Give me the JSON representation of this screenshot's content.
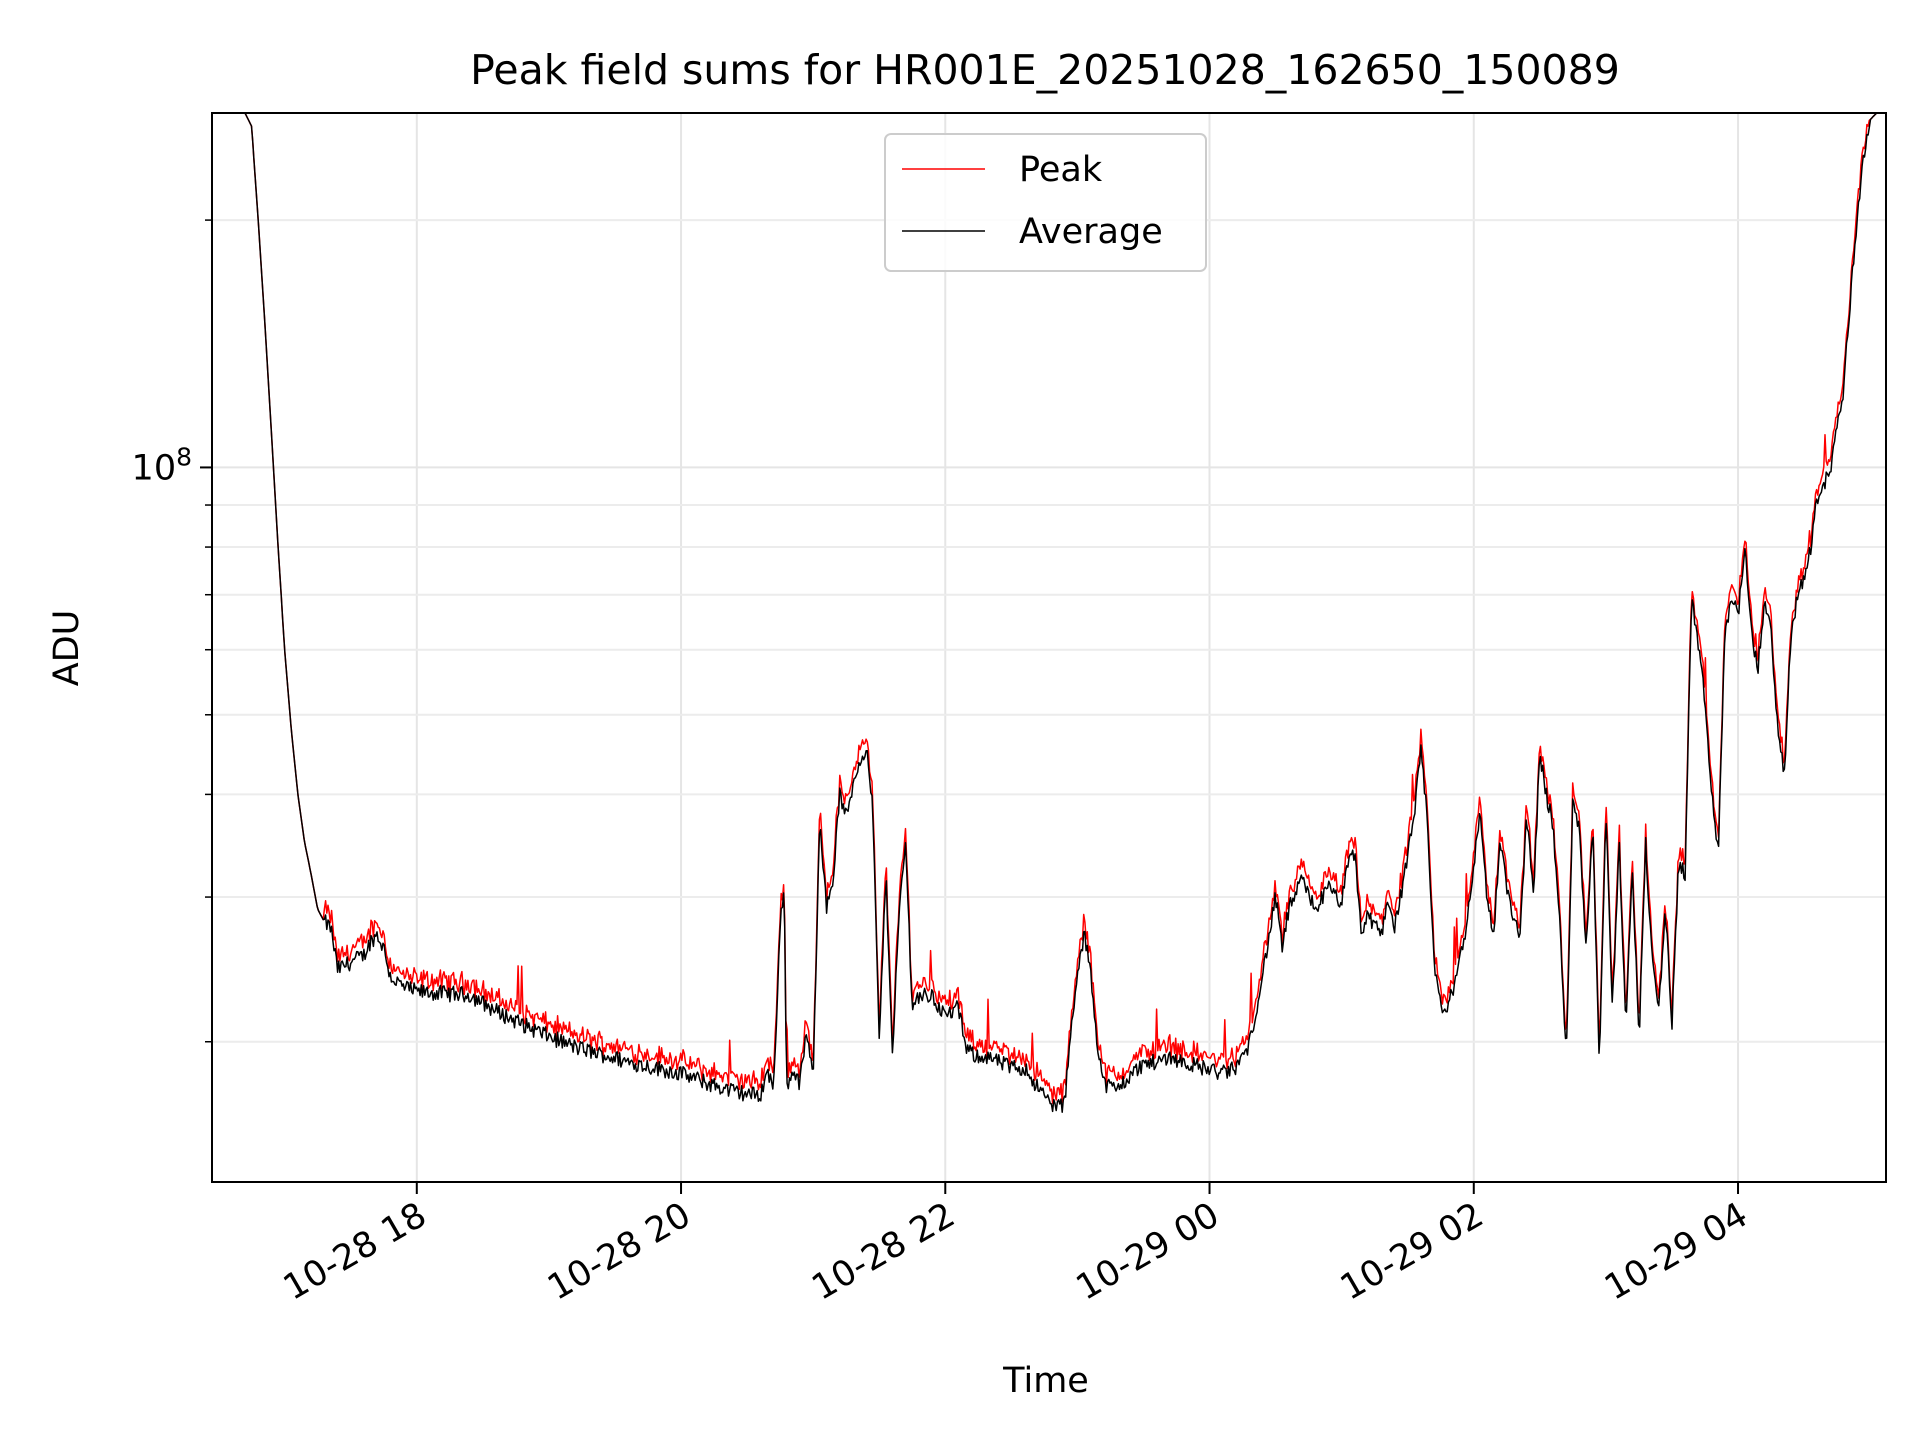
{
  "chart_data": {
    "type": "line",
    "title": "Peak field sums for HR001E_20251028_162650_150089",
    "xlabel": "Time",
    "ylabel": "ADU",
    "yscale": "log",
    "grid": true,
    "legend_position": "upper center",
    "x_unit": "hours since 10-28 00:00",
    "xlim": [
      16.45,
      29.12
    ],
    "ylim": [
      13500000,
      270000000
    ],
    "x_ticks": [
      {
        "value": 18,
        "label": "10-28 18"
      },
      {
        "value": 20,
        "label": "10-28 20"
      },
      {
        "value": 22,
        "label": "10-28 22"
      },
      {
        "value": 24,
        "label": "10-29 00"
      },
      {
        "value": 26,
        "label": "10-29 02"
      },
      {
        "value": 28,
        "label": "10-29 04"
      }
    ],
    "y_major_ticks": [
      {
        "value": 100000000,
        "base": "10",
        "exp": "8"
      }
    ],
    "y_minor_ticks": [
      20000000,
      30000000,
      40000000,
      50000000,
      60000000,
      70000000,
      80000000,
      90000000,
      200000000
    ],
    "series": [
      {
        "name": "Peak",
        "color": "#ff0000",
        "line_width_rel": 0.8
      },
      {
        "name": "Average",
        "color": "#000000",
        "line_width_rel": 0.8
      }
    ],
    "average_points": [
      [
        16.45,
        270000000
      ],
      [
        16.7,
        270000000
      ],
      [
        16.75,
        260000000
      ],
      [
        16.8,
        200000000
      ],
      [
        16.85,
        150000000
      ],
      [
        16.9,
        110000000
      ],
      [
        16.95,
        80000000
      ],
      [
        17.0,
        60000000
      ],
      [
        17.05,
        48000000
      ],
      [
        17.1,
        40000000
      ],
      [
        17.15,
        35000000
      ],
      [
        17.2,
        32000000
      ],
      [
        17.25,
        29000000
      ],
      [
        17.3,
        28000000
      ],
      [
        17.35,
        27500000
      ],
      [
        17.4,
        24500000
      ],
      [
        17.5,
        25000000
      ],
      [
        17.6,
        25500000
      ],
      [
        17.65,
        26500000
      ],
      [
        17.7,
        27000000
      ],
      [
        17.75,
        26000000
      ],
      [
        17.8,
        24000000
      ],
      [
        17.9,
        23300000
      ],
      [
        18.0,
        23000000
      ],
      [
        18.2,
        22900000
      ],
      [
        18.4,
        22800000
      ],
      [
        18.6,
        21800000
      ],
      [
        18.8,
        21000000
      ],
      [
        19.0,
        20300000
      ],
      [
        19.2,
        19700000
      ],
      [
        19.4,
        19300000
      ],
      [
        19.6,
        18900000
      ],
      [
        19.8,
        18600000
      ],
      [
        20.0,
        18300000
      ],
      [
        20.2,
        17800000
      ],
      [
        20.4,
        17400000
      ],
      [
        20.5,
        17300000
      ],
      [
        20.6,
        17200000
      ],
      [
        20.65,
        18400000
      ],
      [
        20.7,
        17600000
      ],
      [
        20.75,
        27500000
      ],
      [
        20.78,
        31500000
      ],
      [
        20.8,
        17500000
      ],
      [
        20.85,
        18500000
      ],
      [
        20.9,
        17800000
      ],
      [
        20.95,
        20600000
      ],
      [
        21.0,
        17900000
      ],
      [
        21.05,
        38000000
      ],
      [
        21.1,
        29000000
      ],
      [
        21.15,
        31500000
      ],
      [
        21.2,
        40000000
      ],
      [
        21.25,
        37500000
      ],
      [
        21.3,
        41000000
      ],
      [
        21.35,
        44000000
      ],
      [
        21.4,
        45500000
      ],
      [
        21.45,
        39000000
      ],
      [
        21.5,
        20000000
      ],
      [
        21.55,
        32000000
      ],
      [
        21.6,
        19500000
      ],
      [
        21.65,
        28500000
      ],
      [
        21.7,
        35000000
      ],
      [
        21.75,
        22000000
      ],
      [
        21.8,
        22800000
      ],
      [
        21.9,
        22700000
      ],
      [
        22.0,
        21500000
      ],
      [
        22.1,
        22000000
      ],
      [
        22.15,
        19800000
      ],
      [
        22.2,
        19300000
      ],
      [
        22.3,
        19200000
      ],
      [
        22.4,
        18900000
      ],
      [
        22.5,
        18600000
      ],
      [
        22.6,
        18600000
      ],
      [
        22.7,
        17600000
      ],
      [
        22.8,
        16800000
      ],
      [
        22.9,
        16700000
      ],
      [
        22.95,
        20400000
      ],
      [
        23.0,
        24000000
      ],
      [
        23.05,
        27000000
      ],
      [
        23.1,
        24500000
      ],
      [
        23.15,
        20000000
      ],
      [
        23.2,
        17800000
      ],
      [
        23.3,
        17500000
      ],
      [
        23.4,
        18200000
      ],
      [
        23.5,
        18800000
      ],
      [
        23.6,
        18900000
      ],
      [
        23.7,
        19200000
      ],
      [
        23.8,
        18900000
      ],
      [
        23.9,
        18700000
      ],
      [
        24.0,
        18500000
      ],
      [
        24.1,
        18300000
      ],
      [
        24.2,
        18600000
      ],
      [
        24.3,
        19800000
      ],
      [
        24.4,
        24000000
      ],
      [
        24.5,
        30000000
      ],
      [
        24.55,
        26000000
      ],
      [
        24.6,
        29000000
      ],
      [
        24.7,
        31500000
      ],
      [
        24.8,
        29000000
      ],
      [
        24.9,
        30800000
      ],
      [
        25.0,
        29500000
      ],
      [
        25.05,
        33000000
      ],
      [
        25.1,
        34000000
      ],
      [
        25.15,
        27000000
      ],
      [
        25.2,
        28500000
      ],
      [
        25.3,
        27000000
      ],
      [
        25.35,
        30000000
      ],
      [
        25.4,
        27500000
      ],
      [
        25.5,
        33500000
      ],
      [
        25.55,
        38000000
      ],
      [
        25.6,
        45000000
      ],
      [
        25.65,
        37000000
      ],
      [
        25.7,
        25000000
      ],
      [
        25.75,
        22000000
      ],
      [
        25.8,
        21800000
      ],
      [
        25.85,
        23500000
      ],
      [
        25.9,
        25500000
      ],
      [
        25.95,
        28000000
      ],
      [
        26.0,
        33000000
      ],
      [
        26.05,
        38000000
      ],
      [
        26.1,
        30000000
      ],
      [
        26.15,
        27000000
      ],
      [
        26.2,
        35000000
      ],
      [
        26.25,
        31000000
      ],
      [
        26.3,
        28000000
      ],
      [
        26.35,
        27000000
      ],
      [
        26.4,
        38000000
      ],
      [
        26.45,
        30000000
      ],
      [
        26.5,
        45000000
      ],
      [
        26.55,
        40000000
      ],
      [
        26.6,
        36500000
      ],
      [
        26.65,
        28000000
      ],
      [
        26.7,
        19000000
      ],
      [
        26.75,
        40000000
      ],
      [
        26.8,
        36000000
      ],
      [
        26.85,
        26000000
      ],
      [
        26.9,
        37000000
      ],
      [
        26.95,
        19000000
      ],
      [
        27.0,
        38000000
      ],
      [
        27.05,
        22000000
      ],
      [
        27.1,
        35000000
      ],
      [
        27.15,
        21000000
      ],
      [
        27.2,
        33000000
      ],
      [
        27.25,
        20000000
      ],
      [
        27.3,
        35000000
      ],
      [
        27.35,
        25000000
      ],
      [
        27.4,
        22000000
      ],
      [
        27.45,
        29000000
      ],
      [
        27.5,
        21000000
      ],
      [
        27.55,
        33000000
      ],
      [
        27.6,
        32000000
      ],
      [
        27.62,
        45000000
      ],
      [
        27.65,
        70000000
      ],
      [
        27.7,
        60000000
      ],
      [
        27.75,
        52000000
      ],
      [
        27.8,
        40000000
      ],
      [
        27.85,
        34000000
      ],
      [
        27.9,
        62000000
      ],
      [
        27.95,
        70000000
      ],
      [
        28.0,
        66000000
      ],
      [
        28.05,
        80000000
      ],
      [
        28.1,
        63000000
      ],
      [
        28.15,
        57000000
      ],
      [
        28.2,
        68000000
      ],
      [
        28.25,
        64000000
      ],
      [
        28.3,
        48000000
      ],
      [
        28.35,
        42000000
      ],
      [
        28.4,
        62000000
      ],
      [
        28.45,
        70000000
      ],
      [
        28.5,
        73000000
      ],
      [
        28.55,
        80000000
      ],
      [
        28.6,
        92000000
      ],
      [
        28.65,
        95000000
      ],
      [
        28.7,
        100000000
      ],
      [
        28.75,
        112000000
      ],
      [
        28.8,
        125000000
      ],
      [
        28.85,
        160000000
      ],
      [
        28.9,
        200000000
      ],
      [
        28.95,
        240000000
      ],
      [
        29.0,
        265000000
      ],
      [
        29.05,
        270000000
      ],
      [
        29.12,
        270000000
      ]
    ]
  }
}
